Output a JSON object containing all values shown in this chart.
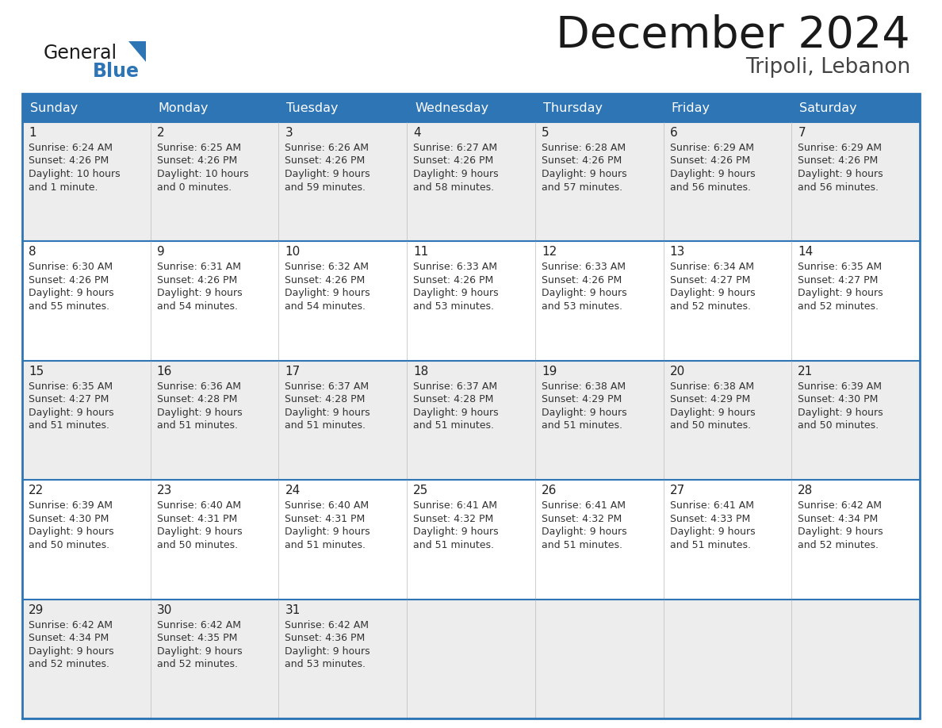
{
  "title": "December 2024",
  "subtitle": "Tripoli, Lebanon",
  "header_bg": "#2E75B6",
  "header_text": "#FFFFFF",
  "cell_bg_odd": "#EDEDED",
  "cell_bg_even": "#FFFFFF",
  "day_names": [
    "Sunday",
    "Monday",
    "Tuesday",
    "Wednesday",
    "Thursday",
    "Friday",
    "Saturday"
  ],
  "title_color": "#1a1a1a",
  "subtitle_color": "#444444",
  "day_num_color": "#222222",
  "cell_text_color": "#333333",
  "border_color": "#2E75B6",
  "logo_general_color": "#1a1a1a",
  "logo_blue_color": "#2E75B6",
  "calendar_data": [
    [
      {
        "day": 1,
        "sunrise": "6:24 AM",
        "sunset": "4:26 PM",
        "dl_hours": "10 hours",
        "dl_min": "and 1 minute."
      },
      {
        "day": 2,
        "sunrise": "6:25 AM",
        "sunset": "4:26 PM",
        "dl_hours": "10 hours",
        "dl_min": "and 0 minutes."
      },
      {
        "day": 3,
        "sunrise": "6:26 AM",
        "sunset": "4:26 PM",
        "dl_hours": "9 hours",
        "dl_min": "and 59 minutes."
      },
      {
        "day": 4,
        "sunrise": "6:27 AM",
        "sunset": "4:26 PM",
        "dl_hours": "9 hours",
        "dl_min": "and 58 minutes."
      },
      {
        "day": 5,
        "sunrise": "6:28 AM",
        "sunset": "4:26 PM",
        "dl_hours": "9 hours",
        "dl_min": "and 57 minutes."
      },
      {
        "day": 6,
        "sunrise": "6:29 AM",
        "sunset": "4:26 PM",
        "dl_hours": "9 hours",
        "dl_min": "and 56 minutes."
      },
      {
        "day": 7,
        "sunrise": "6:29 AM",
        "sunset": "4:26 PM",
        "dl_hours": "9 hours",
        "dl_min": "and 56 minutes."
      }
    ],
    [
      {
        "day": 8,
        "sunrise": "6:30 AM",
        "sunset": "4:26 PM",
        "dl_hours": "9 hours",
        "dl_min": "and 55 minutes."
      },
      {
        "day": 9,
        "sunrise": "6:31 AM",
        "sunset": "4:26 PM",
        "dl_hours": "9 hours",
        "dl_min": "and 54 minutes."
      },
      {
        "day": 10,
        "sunrise": "6:32 AM",
        "sunset": "4:26 PM",
        "dl_hours": "9 hours",
        "dl_min": "and 54 minutes."
      },
      {
        "day": 11,
        "sunrise": "6:33 AM",
        "sunset": "4:26 PM",
        "dl_hours": "9 hours",
        "dl_min": "and 53 minutes."
      },
      {
        "day": 12,
        "sunrise": "6:33 AM",
        "sunset": "4:26 PM",
        "dl_hours": "9 hours",
        "dl_min": "and 53 minutes."
      },
      {
        "day": 13,
        "sunrise": "6:34 AM",
        "sunset": "4:27 PM",
        "dl_hours": "9 hours",
        "dl_min": "and 52 minutes."
      },
      {
        "day": 14,
        "sunrise": "6:35 AM",
        "sunset": "4:27 PM",
        "dl_hours": "9 hours",
        "dl_min": "and 52 minutes."
      }
    ],
    [
      {
        "day": 15,
        "sunrise": "6:35 AM",
        "sunset": "4:27 PM",
        "dl_hours": "9 hours",
        "dl_min": "and 51 minutes."
      },
      {
        "day": 16,
        "sunrise": "6:36 AM",
        "sunset": "4:28 PM",
        "dl_hours": "9 hours",
        "dl_min": "and 51 minutes."
      },
      {
        "day": 17,
        "sunrise": "6:37 AM",
        "sunset": "4:28 PM",
        "dl_hours": "9 hours",
        "dl_min": "and 51 minutes."
      },
      {
        "day": 18,
        "sunrise": "6:37 AM",
        "sunset": "4:28 PM",
        "dl_hours": "9 hours",
        "dl_min": "and 51 minutes."
      },
      {
        "day": 19,
        "sunrise": "6:38 AM",
        "sunset": "4:29 PM",
        "dl_hours": "9 hours",
        "dl_min": "and 51 minutes."
      },
      {
        "day": 20,
        "sunrise": "6:38 AM",
        "sunset": "4:29 PM",
        "dl_hours": "9 hours",
        "dl_min": "and 50 minutes."
      },
      {
        "day": 21,
        "sunrise": "6:39 AM",
        "sunset": "4:30 PM",
        "dl_hours": "9 hours",
        "dl_min": "and 50 minutes."
      }
    ],
    [
      {
        "day": 22,
        "sunrise": "6:39 AM",
        "sunset": "4:30 PM",
        "dl_hours": "9 hours",
        "dl_min": "and 50 minutes."
      },
      {
        "day": 23,
        "sunrise": "6:40 AM",
        "sunset": "4:31 PM",
        "dl_hours": "9 hours",
        "dl_min": "and 50 minutes."
      },
      {
        "day": 24,
        "sunrise": "6:40 AM",
        "sunset": "4:31 PM",
        "dl_hours": "9 hours",
        "dl_min": "and 51 minutes."
      },
      {
        "day": 25,
        "sunrise": "6:41 AM",
        "sunset": "4:32 PM",
        "dl_hours": "9 hours",
        "dl_min": "and 51 minutes."
      },
      {
        "day": 26,
        "sunrise": "6:41 AM",
        "sunset": "4:32 PM",
        "dl_hours": "9 hours",
        "dl_min": "and 51 minutes."
      },
      {
        "day": 27,
        "sunrise": "6:41 AM",
        "sunset": "4:33 PM",
        "dl_hours": "9 hours",
        "dl_min": "and 51 minutes."
      },
      {
        "day": 28,
        "sunrise": "6:42 AM",
        "sunset": "4:34 PM",
        "dl_hours": "9 hours",
        "dl_min": "and 52 minutes."
      }
    ],
    [
      {
        "day": 29,
        "sunrise": "6:42 AM",
        "sunset": "4:34 PM",
        "dl_hours": "9 hours",
        "dl_min": "and 52 minutes."
      },
      {
        "day": 30,
        "sunrise": "6:42 AM",
        "sunset": "4:35 PM",
        "dl_hours": "9 hours",
        "dl_min": "and 52 minutes."
      },
      {
        "day": 31,
        "sunrise": "6:42 AM",
        "sunset": "4:36 PM",
        "dl_hours": "9 hours",
        "dl_min": "and 53 minutes."
      },
      null,
      null,
      null,
      null
    ]
  ]
}
